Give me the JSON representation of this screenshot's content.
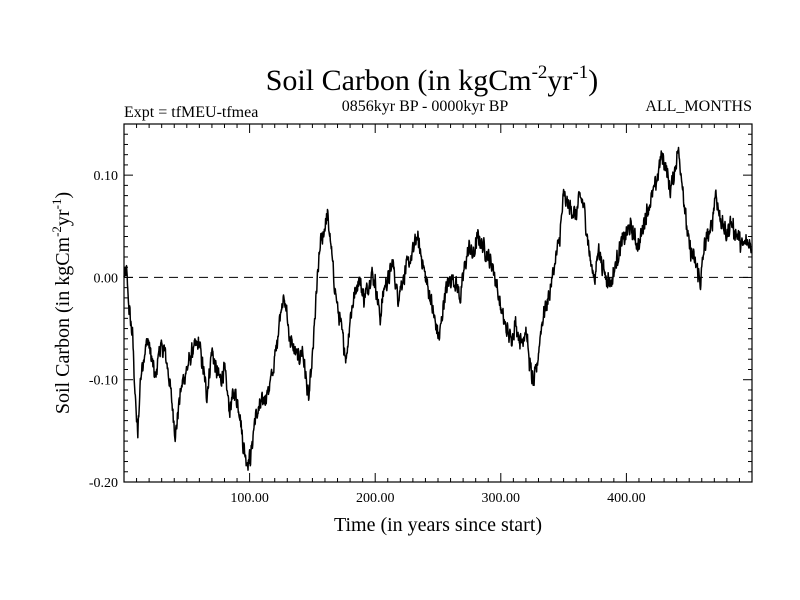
{
  "chart_data": {
    "type": "line",
    "title": "Soil Carbon (in kgCm",
    "title_sup1": "-2",
    "title_mid": "yr",
    "title_sup2": "-1",
    "title_close": ")",
    "subtitle_left": "Expt = tfMEU-tfmea",
    "subtitle_center": "0856kyr BP - 0000kyr BP",
    "subtitle_right": "ALL_MONTHS",
    "xlabel": "Time (in years since start)",
    "ylabel": "Soil Carbon (in kgCm",
    "ylabel_sup1": "-2",
    "ylabel_mid": "yr",
    "ylabel_sup2": "-1",
    "ylabel_close": ")",
    "xlim": [
      0,
      500
    ],
    "ylim": [
      -0.2,
      0.15
    ],
    "x_ticks": [
      100,
      200,
      300,
      400
    ],
    "x_tick_labels": [
      "100.00",
      "200.00",
      "300.00",
      "400.00"
    ],
    "y_ticks": [
      0.1,
      0.0,
      -0.1,
      -0.2
    ],
    "y_tick_labels": [
      "0.10",
      "0.00",
      "-0.10",
      "-0.20"
    ],
    "reference_line": {
      "y": 0.0,
      "style": "dashed"
    },
    "series": [
      {
        "name": "Soil Carbon",
        "color": "#000000",
        "anchors": [
          [
            0,
            0.0
          ],
          [
            2,
            0.005
          ],
          [
            4,
            -0.03
          ],
          [
            7,
            -0.06
          ],
          [
            9,
            -0.12
          ],
          [
            11,
            -0.155
          ],
          [
            13,
            -0.1
          ],
          [
            16,
            -0.075
          ],
          [
            19,
            -0.06
          ],
          [
            22,
            -0.08
          ],
          [
            25,
            -0.1
          ],
          [
            28,
            -0.07
          ],
          [
            32,
            -0.07
          ],
          [
            35,
            -0.09
          ],
          [
            38,
            -0.12
          ],
          [
            41,
            -0.155
          ],
          [
            44,
            -0.12
          ],
          [
            47,
            -0.1
          ],
          [
            50,
            -0.09
          ],
          [
            55,
            -0.07
          ],
          [
            60,
            -0.065
          ],
          [
            63,
            -0.09
          ],
          [
            66,
            -0.115
          ],
          [
            70,
            -0.07
          ],
          [
            73,
            -0.09
          ],
          [
            77,
            -0.1
          ],
          [
            80,
            -0.09
          ],
          [
            84,
            -0.13
          ],
          [
            88,
            -0.11
          ],
          [
            92,
            -0.13
          ],
          [
            95,
            -0.165
          ],
          [
            98,
            -0.18
          ],
          [
            101,
            -0.175
          ],
          [
            104,
            -0.14
          ],
          [
            107,
            -0.13
          ],
          [
            111,
            -0.12
          ],
          [
            115,
            -0.11
          ],
          [
            119,
            -0.09
          ],
          [
            123,
            -0.05
          ],
          [
            126,
            -0.02
          ],
          [
            129,
            -0.03
          ],
          [
            132,
            -0.06
          ],
          [
            135,
            -0.07
          ],
          [
            139,
            -0.08
          ],
          [
            142,
            -0.07
          ],
          [
            145,
            -0.1
          ],
          [
            147,
            -0.12
          ],
          [
            150,
            -0.08
          ],
          [
            153,
            -0.02
          ],
          [
            156,
            0.03
          ],
          [
            159,
            0.045
          ],
          [
            162,
            0.06
          ],
          [
            164,
            0.04
          ],
          [
            167,
            0.0
          ],
          [
            170,
            -0.03
          ],
          [
            173,
            -0.05
          ],
          [
            177,
            -0.08
          ],
          [
            180,
            -0.04
          ],
          [
            183,
            -0.02
          ],
          [
            187,
            0.0
          ],
          [
            191,
            -0.02
          ],
          [
            194,
            -0.01
          ],
          [
            197,
            0.005
          ],
          [
            200,
            -0.005
          ],
          [
            204,
            -0.04
          ],
          [
            207,
            -0.01
          ],
          [
            211,
            0.0
          ],
          [
            214,
            0.015
          ],
          [
            218,
            -0.02
          ],
          [
            221,
            -0.005
          ],
          [
            225,
            0.01
          ],
          [
            229,
            0.02
          ],
          [
            233,
            0.04
          ],
          [
            237,
            0.02
          ],
          [
            240,
            0.0
          ],
          [
            244,
            -0.02
          ],
          [
            247,
            -0.04
          ],
          [
            251,
            -0.06
          ],
          [
            255,
            -0.02
          ],
          [
            258,
            -0.005
          ],
          [
            261,
            0.0
          ],
          [
            264,
            -0.005
          ],
          [
            268,
            -0.02
          ],
          [
            271,
            0.01
          ],
          [
            275,
            0.03
          ],
          [
            278,
            0.02
          ],
          [
            282,
            0.04
          ],
          [
            286,
            0.03
          ],
          [
            290,
            0.02
          ],
          [
            294,
            0.01
          ],
          [
            297,
            -0.01
          ],
          [
            300,
            -0.03
          ],
          [
            304,
            -0.05
          ],
          [
            308,
            -0.06
          ],
          [
            312,
            -0.045
          ],
          [
            316,
            -0.065
          ],
          [
            320,
            -0.05
          ],
          [
            323,
            -0.085
          ],
          [
            326,
            -0.105
          ],
          [
            329,
            -0.085
          ],
          [
            332,
            -0.05
          ],
          [
            335,
            -0.03
          ],
          [
            338,
            -0.02
          ],
          [
            341,
            0.0
          ],
          [
            344,
            0.02
          ],
          [
            347,
            0.04
          ],
          [
            350,
            0.08
          ],
          [
            354,
            0.07
          ],
          [
            357,
            0.065
          ],
          [
            360,
            0.06
          ],
          [
            363,
            0.08
          ],
          [
            366,
            0.07
          ],
          [
            369,
            0.04
          ],
          [
            372,
            0.01
          ],
          [
            375,
            0.0
          ],
          [
            378,
            0.03
          ],
          [
            381,
            0.01
          ],
          [
            384,
            0.0
          ],
          [
            388,
            -0.005
          ],
          [
            391,
            0.01
          ],
          [
            395,
            0.03
          ],
          [
            399,
            0.04
          ],
          [
            403,
            0.05
          ],
          [
            406,
            0.04
          ],
          [
            410,
            0.03
          ],
          [
            414,
            0.055
          ],
          [
            418,
            0.07
          ],
          [
            422,
            0.085
          ],
          [
            425,
            0.1
          ],
          [
            428,
            0.12
          ],
          [
            431,
            0.11
          ],
          [
            435,
            0.085
          ],
          [
            438,
            0.1
          ],
          [
            441,
            0.125
          ],
          [
            444,
            0.1
          ],
          [
            447,
            0.06
          ],
          [
            450,
            0.03
          ],
          [
            453,
            0.02
          ],
          [
            456,
            0.01
          ],
          [
            459,
            -0.005
          ],
          [
            462,
            0.03
          ],
          [
            465,
            0.04
          ],
          [
            468,
            0.05
          ],
          [
            471,
            0.085
          ],
          [
            474,
            0.06
          ],
          [
            477,
            0.05
          ],
          [
            480,
            0.04
          ],
          [
            483,
            0.055
          ],
          [
            486,
            0.045
          ],
          [
            489,
            0.04
          ],
          [
            492,
            0.03
          ],
          [
            496,
            0.035
          ],
          [
            500,
            0.03
          ]
        ]
      }
    ]
  }
}
